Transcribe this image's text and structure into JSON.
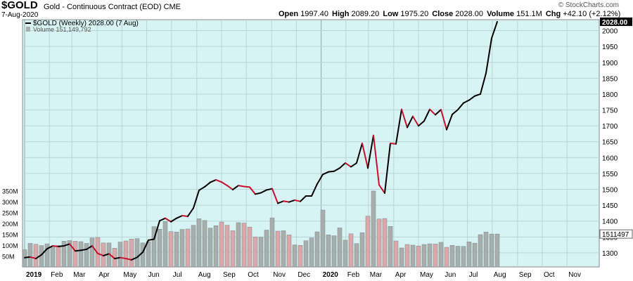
{
  "header": {
    "symbol": "$GOLD",
    "description": "Gold - Continuous Contract (EOD)",
    "exchange": "CME",
    "date": "7-Aug-2020",
    "copyright": "© StockCharts.com",
    "open_label": "Open",
    "open": "1997.40",
    "high_label": "High",
    "high": "2089.20",
    "low_label": "Low",
    "low": "1975.20",
    "close_label": "Close",
    "close": "2028.00",
    "volume_label": "Volume",
    "volume": "151.1M",
    "chg_label": "Chg",
    "chg": "+42.10 (+2.12%)"
  },
  "legend": {
    "price": "$GOLD (Weekly) 2028.00 (7 Aug)",
    "volume": "Volume 151,149,792"
  },
  "colors": {
    "background": "#d8f3f3",
    "up": "#000000",
    "down": "#c8102e",
    "vol_up": "#a7aeae",
    "vol_down": "#d8a8ab",
    "grid": "#b8d4d4"
  },
  "chart_data": {
    "type": "line",
    "title": "$GOLD (Weekly) 2028.00 (7 Aug)",
    "x_axis": {
      "labels": [
        "2019",
        "Feb",
        "Mar",
        "Apr",
        "May",
        "Jun",
        "Jul",
        "Aug",
        "Sep",
        "Oct",
        "Nov",
        "Dec",
        "2020",
        "Feb",
        "Mar",
        "Apr",
        "May",
        "Jun",
        "Jul",
        "Aug",
        "Sep",
        "Oct",
        "Nov"
      ],
      "label_weeks": [
        0,
        4.4,
        8.4,
        12.9,
        17.3,
        21.7,
        26.1,
        30.6,
        35,
        39.4,
        43.9,
        48.3,
        52.7,
        57.1,
        61.1,
        65.6,
        70,
        74.4,
        78.7,
        83.1,
        87.6,
        92,
        96.4
      ]
    },
    "y_axis": {
      "ticks": [
        1300,
        1350,
        1400,
        1450,
        1500,
        1550,
        1600,
        1650,
        1700,
        1750,
        1800,
        1850,
        1900,
        1950,
        2000
      ],
      "range": [
        1260,
        2030
      ],
      "scale": "linear",
      "last_value_label": "2028.00"
    },
    "volume_axis": {
      "ticks": [
        "50M",
        "100M",
        "150M",
        "200M",
        "250M",
        "300M",
        "350M"
      ],
      "range": [
        0,
        380
      ],
      "last_value_label": "1511497"
    },
    "grid": true,
    "series": [
      {
        "name": "$GOLD (Weekly) 2028.00 (7 Aug)",
        "values": [
          1285,
          1287,
          1282,
          1294,
          1313,
          1322,
          1320,
          1322,
          1328,
          1306,
          1308,
          1311,
          1322,
          1298,
          1291,
          1297,
          1282,
          1285,
          1282,
          1278,
          1286,
          1302,
          1340,
          1343,
          1401,
          1409,
          1398,
          1409,
          1417,
          1415,
          1441,
          1497,
          1508,
          1522,
          1530,
          1523,
          1512,
          1499,
          1512,
          1509,
          1507,
          1485,
          1489,
          1498,
          1502,
          1456,
          1463,
          1460,
          1466,
          1462,
          1479,
          1479,
          1517,
          1547,
          1555,
          1557,
          1567,
          1583,
          1571,
          1583,
          1645,
          1567,
          1670,
          1514,
          1488,
          1645,
          1643,
          1752,
          1695,
          1730,
          1700,
          1715,
          1752,
          1735,
          1751,
          1688,
          1736,
          1751,
          1772,
          1781,
          1794,
          1800,
          1866,
          1976,
          2028
        ],
        "volumes_m": [
          79,
          108,
          104,
          98,
          106,
          94,
          98,
          118,
          121,
          118,
          116,
          108,
          133,
          135,
          110,
          110,
          86,
          114,
          119,
          128,
          130,
          110,
          116,
          185,
          173,
          208,
          162,
          160,
          172,
          174,
          191,
          221,
          213,
          178,
          189,
          206,
          191,
          166,
          203,
          201,
          183,
          137,
          136,
          169,
          225,
          164,
          166,
          147,
          101,
          99,
          120,
          133,
          161,
          261,
          147,
          143,
          179,
          123,
          152,
          107,
          157,
          233,
          348,
          220,
          222,
          186,
          119,
          87,
          103,
          100,
          96,
          103,
          106,
          105,
          113,
          90,
          99,
          95,
          94,
          115,
          109,
          148,
          160,
          151,
          151
        ]
      }
    ]
  }
}
